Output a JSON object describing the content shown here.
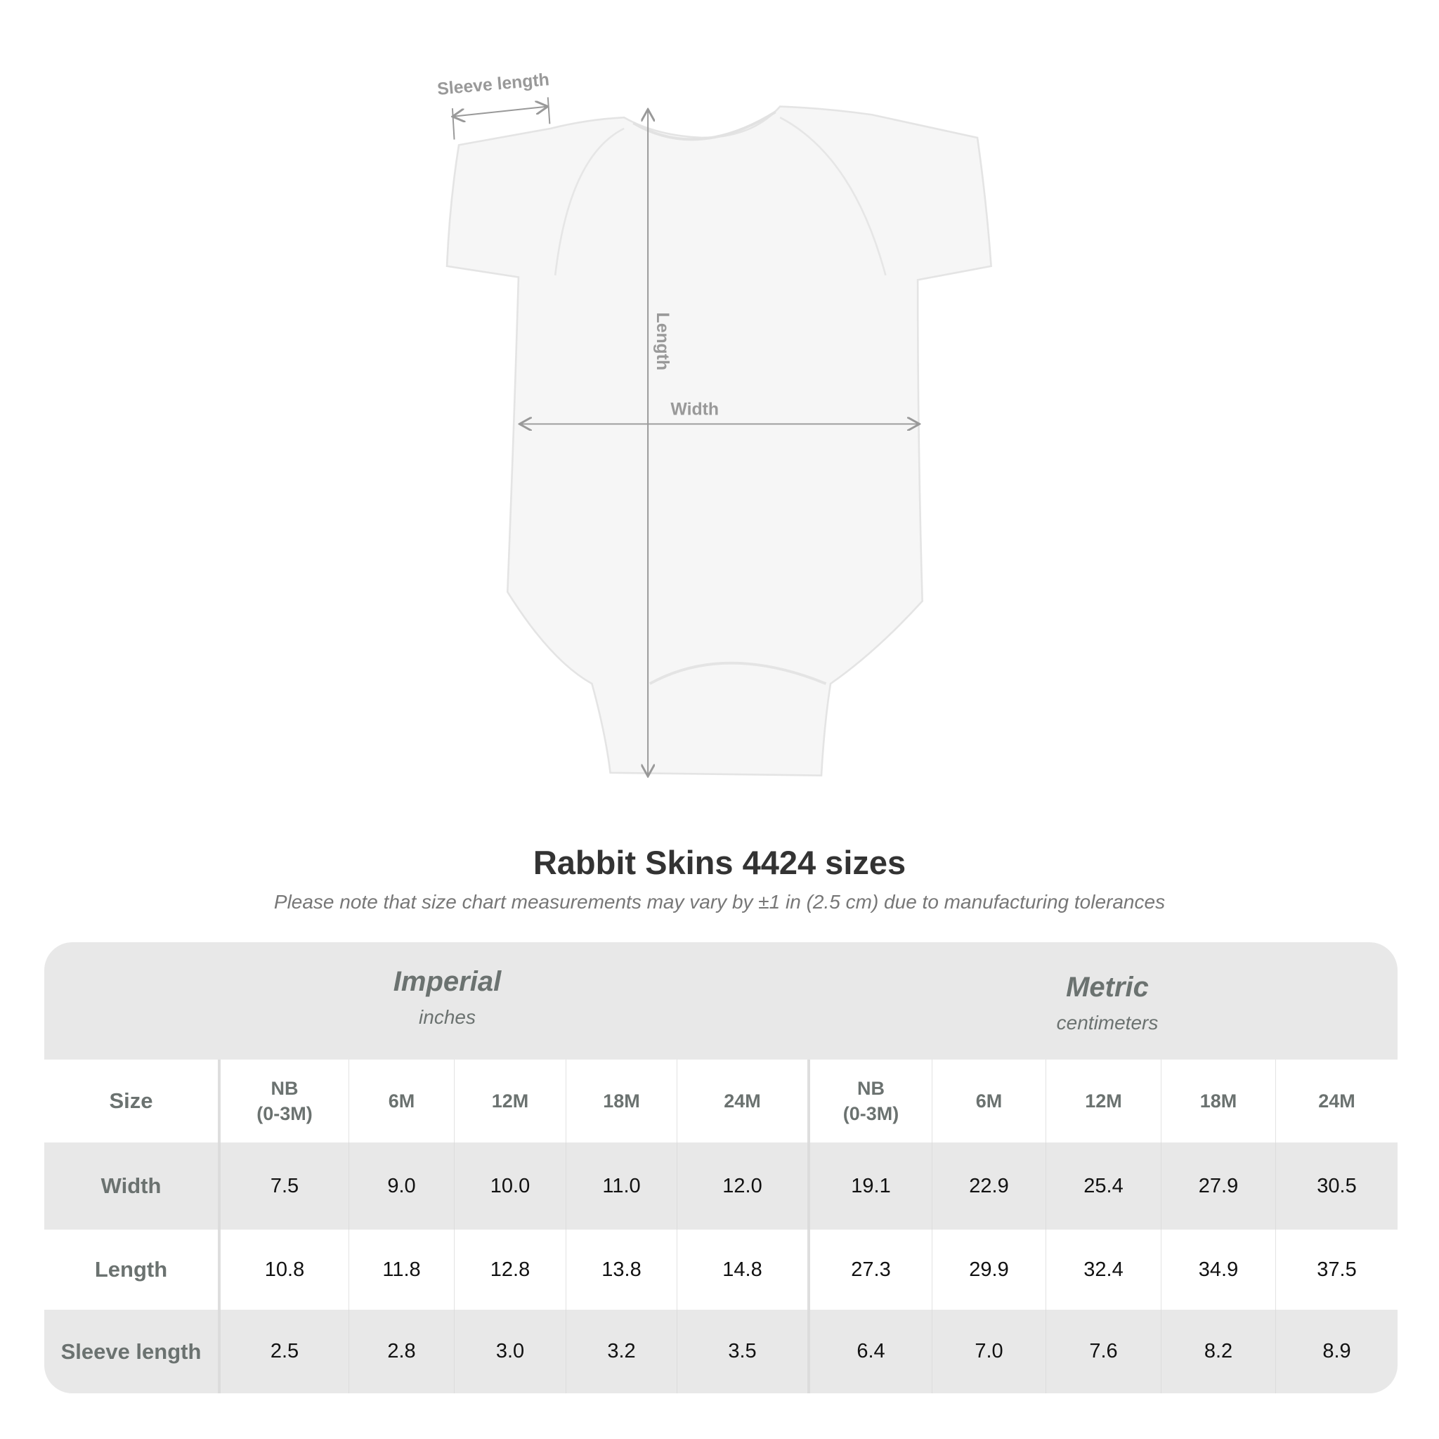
{
  "diagram": {
    "sleeve_label": "Sleeve length",
    "length_label": "Length",
    "width_label": "Width"
  },
  "title": "Rabbit Skins 4424 sizes",
  "note": "Please note that size chart measurements may vary by ±1 in (2.5 cm) due to manufacturing tolerances",
  "table": {
    "imperial": {
      "name": "Imperial",
      "unit": "inches"
    },
    "metric": {
      "name": "Metric",
      "unit": "centimeters"
    },
    "size_label": "Size",
    "sizes": [
      "NB\n(0-3M)",
      "6M",
      "12M",
      "18M",
      "24M"
    ],
    "rows": [
      {
        "label": "Width",
        "imperial": [
          "7.5",
          "9.0",
          "10.0",
          "11.0",
          "12.0"
        ],
        "metric": [
          "19.1",
          "22.9",
          "25.4",
          "27.9",
          "30.5"
        ]
      },
      {
        "label": "Length",
        "imperial": [
          "10.8",
          "11.8",
          "12.8",
          "13.8",
          "14.8"
        ],
        "metric": [
          "27.3",
          "29.9",
          "32.4",
          "34.9",
          "37.5"
        ]
      },
      {
        "label": "Sleeve length",
        "imperial": [
          "2.5",
          "2.8",
          "3.0",
          "3.2",
          "3.5"
        ],
        "metric": [
          "6.4",
          "7.0",
          "7.6",
          "8.2",
          "8.9"
        ]
      }
    ]
  }
}
